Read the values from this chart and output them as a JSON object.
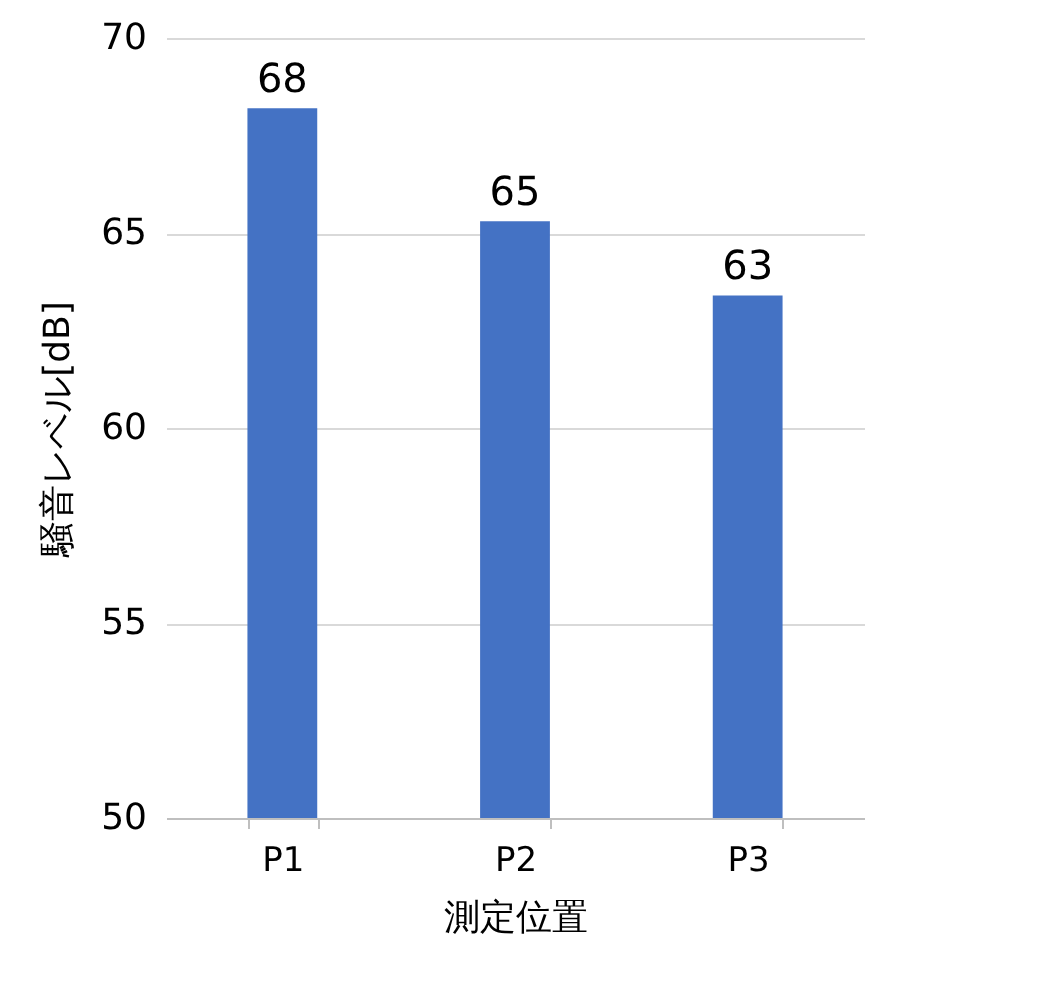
{
  "chart_data": {
    "type": "bar",
    "xlabel": "測定位置",
    "ylabel": "騒音レベル[dB]",
    "categories": [
      "P1",
      "P2",
      "P3"
    ],
    "values": [
      68.2,
      65.3,
      63.4
    ],
    "value_labels": [
      "68",
      "65",
      "63"
    ],
    "color": "#4472c4",
    "ylim": [
      50,
      70
    ],
    "yticks": [
      50,
      55,
      60,
      65,
      70
    ],
    "grid": "y"
  }
}
